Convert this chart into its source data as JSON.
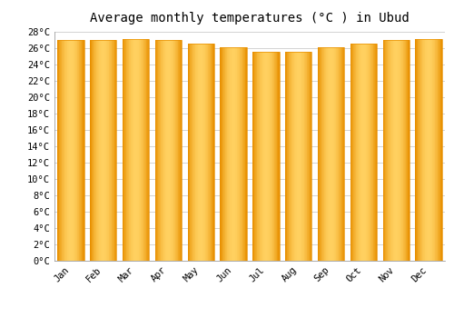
{
  "title": "Average monthly temperatures (°C ) in Ubud",
  "months": [
    "Jan",
    "Feb",
    "Mar",
    "Apr",
    "May",
    "Jun",
    "Jul",
    "Aug",
    "Sep",
    "Oct",
    "Nov",
    "Dec"
  ],
  "values": [
    27.0,
    27.0,
    27.1,
    27.0,
    26.6,
    26.1,
    25.6,
    25.6,
    26.1,
    26.6,
    27.0,
    27.1
  ],
  "bar_color_main": "#FFBB33",
  "bar_color_light": "#FFD060",
  "bar_color_dark": "#E89000",
  "background_color": "#FFFFFF",
  "grid_color": "#CCCCCC",
  "ylim_max": 28,
  "ytick_step": 2,
  "title_fontsize": 10,
  "tick_fontsize": 7.5,
  "font_family": "monospace"
}
